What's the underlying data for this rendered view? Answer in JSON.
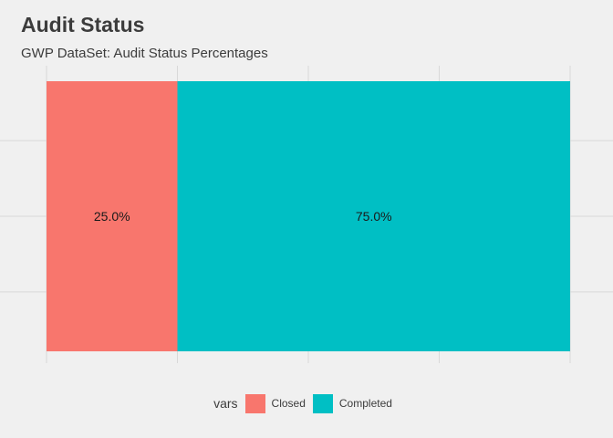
{
  "header": {
    "title": "Audit Status",
    "subtitle": "GWP DataSet: Audit Status Percentages"
  },
  "legend": {
    "title": "vars",
    "placement": "bottom"
  },
  "chart_data": {
    "type": "bar",
    "orientation": "horizontal-stacked-100",
    "title": "Audit Status",
    "subtitle": "GWP DataSet: Audit Status Percentages",
    "xlabel": "",
    "ylabel": "",
    "xlim": [
      0,
      1
    ],
    "grid": true,
    "legend_title": "vars",
    "legend_placement": "bottom",
    "series": [
      {
        "name": "Closed",
        "value": 0.25,
        "label": "25.0%",
        "color": "#f8766d"
      },
      {
        "name": "Completed",
        "value": 0.75,
        "label": "75.0%",
        "color": "#00bfc4"
      }
    ]
  }
}
